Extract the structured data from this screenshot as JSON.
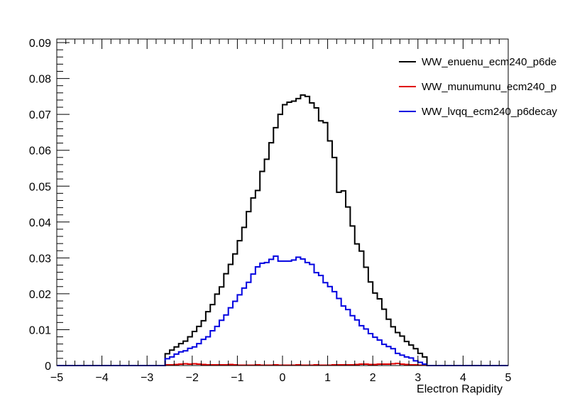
{
  "chart_data": {
    "type": "line",
    "title": "",
    "xlabel": "Electron Rapidity",
    "ylabel": "",
    "xlim": [
      -5,
      5
    ],
    "ylim": [
      0,
      0.091
    ],
    "grid": false,
    "legend_position": "top-right",
    "x_ticks": [
      "−5",
      "−4",
      "−3",
      "−2",
      "−1",
      "0",
      "1",
      "2",
      "3",
      "4",
      "5"
    ],
    "x_tick_values": [
      -5,
      -4,
      -3,
      -2,
      -1,
      0,
      1,
      2,
      3,
      4,
      5
    ],
    "y_ticks": [
      "0",
      "0.01",
      "0.02",
      "0.03",
      "0.04",
      "0.05",
      "0.06",
      "0.07",
      "0.08",
      "0.09"
    ],
    "y_tick_values": [
      0,
      0.01,
      0.02,
      0.03,
      0.04,
      0.05,
      0.06,
      0.07,
      0.08,
      0.09
    ],
    "bin_edges_start": -2.6,
    "bin_width": 0.1,
    "series": [
      {
        "name": "WW_enuenu_ecm240_p6de",
        "color": "#000000",
        "values": [
          0.0033,
          0.0043,
          0.0052,
          0.0061,
          0.0068,
          0.008,
          0.0095,
          0.0109,
          0.0125,
          0.015,
          0.017,
          0.0199,
          0.0219,
          0.0256,
          0.0282,
          0.0311,
          0.0348,
          0.0385,
          0.0429,
          0.0467,
          0.0488,
          0.0541,
          0.0575,
          0.0621,
          0.0663,
          0.07,
          0.0727,
          0.0734,
          0.0737,
          0.0744,
          0.0754,
          0.075,
          0.0732,
          0.0718,
          0.0682,
          0.0677,
          0.0626,
          0.058,
          0.0483,
          0.0487,
          0.0442,
          0.0389,
          0.0339,
          0.0319,
          0.0274,
          0.0233,
          0.0202,
          0.0186,
          0.0157,
          0.0129,
          0.0108,
          0.0092,
          0.0082,
          0.0067,
          0.0057,
          0.0047,
          0.0034,
          0.0024
        ]
      },
      {
        "name": "WW_munumunu_ecm240_p",
        "color": "#e00000",
        "values": [
          0.0002,
          0.0002,
          0.0003,
          0.0004,
          0.0005,
          0.0004,
          0.0005,
          0.0004,
          0.0003,
          0.0002,
          0.0002,
          0.0002,
          0.0002,
          0.0002,
          0.0003,
          0.0002,
          0.0001,
          0.0001,
          0.0001,
          0.0001,
          0.0002,
          0.0001,
          0.0001,
          0.0001,
          0.0002,
          0.0001,
          0.0001,
          0.0001,
          0.0001,
          0.0002,
          0.0001,
          0.0001,
          0.0001,
          0.0002,
          0.0001,
          0.0001,
          0.0001,
          0.0002,
          0.0002,
          0.0002,
          0.0002,
          0.0002,
          0.0003,
          0.0004,
          0.0004,
          0.0003,
          0.0003,
          0.0004,
          0.0004,
          0.0004,
          0.0005,
          0.0006,
          0.0004,
          0.0003,
          0.0002,
          0.0002,
          0.0001,
          0.0001
        ]
      },
      {
        "name": "WW_lvqq_ecm240_p6decay",
        "color": "#0000e0",
        "values": [
          0.0019,
          0.0024,
          0.0032,
          0.0038,
          0.0041,
          0.0048,
          0.0052,
          0.0061,
          0.0073,
          0.008,
          0.0097,
          0.0109,
          0.0126,
          0.0141,
          0.0161,
          0.0179,
          0.0197,
          0.0216,
          0.0232,
          0.0255,
          0.0275,
          0.0285,
          0.0287,
          0.0296,
          0.0305,
          0.0291,
          0.0291,
          0.0291,
          0.0294,
          0.0302,
          0.0297,
          0.0287,
          0.0282,
          0.0259,
          0.0251,
          0.0231,
          0.022,
          0.0206,
          0.0187,
          0.0166,
          0.0156,
          0.0139,
          0.0127,
          0.0111,
          0.0102,
          0.0089,
          0.0079,
          0.0071,
          0.0059,
          0.0053,
          0.0047,
          0.0034,
          0.0029,
          0.0024,
          0.0021,
          0.0013,
          0.0009,
          0.0004
        ]
      }
    ]
  }
}
